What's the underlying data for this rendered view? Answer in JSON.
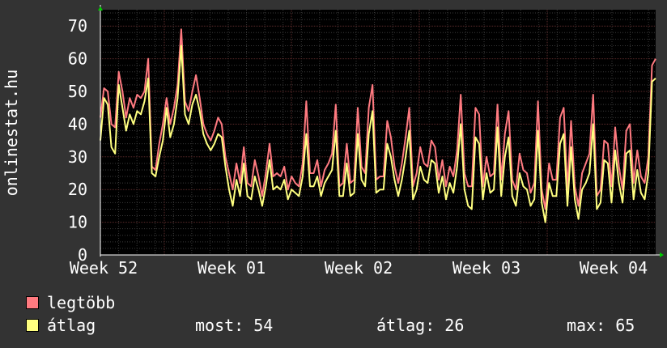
{
  "chart_data": {
    "type": "line",
    "ylabel": "onlinestat.hu",
    "ylim": [
      0,
      75
    ],
    "yticks": [
      "0",
      "10",
      "20",
      "30",
      "40",
      "50",
      "60",
      "70"
    ],
    "xticks": [
      "Week 52",
      "Week 01",
      "Week 02",
      "Week 03",
      "Week 04"
    ],
    "grid": true,
    "series": [
      {
        "name": "legtöbb",
        "color": "#ff7a80",
        "values": [
          42,
          51,
          50,
          40,
          39,
          56,
          50,
          42,
          48,
          45,
          49,
          48,
          50,
          60,
          27,
          26,
          34,
          40,
          48,
          40,
          45,
          52,
          69,
          47,
          44,
          50,
          55,
          48,
          40,
          37,
          35,
          38,
          42,
          40,
          30,
          25,
          20,
          28,
          22,
          33,
          22,
          21,
          29,
          24,
          18,
          25,
          34,
          24,
          25,
          24,
          27,
          20,
          24,
          22,
          21,
          28,
          47,
          25,
          25,
          29,
          21,
          26,
          28,
          31,
          46,
          21,
          22,
          34,
          22,
          23,
          45,
          27,
          25,
          45,
          52,
          23,
          24,
          24,
          41,
          36,
          27,
          22,
          28,
          36,
          45,
          21,
          25,
          33,
          28,
          27,
          35,
          33,
          23,
          29,
          21,
          27,
          24,
          32,
          49,
          25,
          21,
          21,
          45,
          43,
          21,
          30,
          24,
          25,
          46,
          23,
          37,
          44,
          23,
          20,
          31,
          26,
          25,
          19,
          22,
          47,
          20,
          14,
          28,
          23,
          23,
          42,
          45,
          20,
          41,
          21,
          15,
          25,
          28,
          31,
          49,
          18,
          20,
          35,
          34,
          21,
          39,
          27,
          20,
          38,
          40,
          22,
          32,
          24,
          22,
          30,
          58,
          60
        ]
      },
      {
        "name": "átlag",
        "color": "#ffff80",
        "values": [
          35,
          48,
          46,
          33,
          31,
          52,
          45,
          38,
          43,
          40,
          44,
          43,
          47,
          54,
          25,
          24,
          30,
          35,
          45,
          36,
          40,
          48,
          64,
          43,
          40,
          46,
          49,
          44,
          37,
          34,
          32,
          34,
          37,
          36,
          27,
          20,
          15,
          23,
          18,
          28,
          18,
          17,
          24,
          20,
          15,
          21,
          29,
          20,
          21,
          20,
          23,
          17,
          20,
          19,
          18,
          24,
          37,
          21,
          21,
          24,
          18,
          22,
          24,
          26,
          38,
          18,
          18,
          28,
          18,
          19,
          37,
          23,
          21,
          37,
          44,
          19,
          20,
          20,
          34,
          30,
          23,
          18,
          23,
          30,
          38,
          17,
          20,
          27,
          23,
          22,
          29,
          28,
          19,
          24,
          17,
          22,
          19,
          27,
          40,
          20,
          15,
          14,
          36,
          34,
          17,
          25,
          19,
          20,
          39,
          18,
          30,
          36,
          18,
          15,
          25,
          21,
          20,
          15,
          17,
          38,
          16,
          10,
          22,
          18,
          18,
          34,
          37,
          15,
          33,
          17,
          11,
          20,
          22,
          25,
          40,
          14,
          16,
          29,
          28,
          16,
          32,
          22,
          16,
          31,
          32,
          17,
          26,
          19,
          17,
          25,
          53,
          54
        ]
      }
    ]
  },
  "legend": [
    {
      "label": "legtöbb",
      "color": "#ff7a80"
    },
    {
      "label": "átlag",
      "color": "#ffff80"
    }
  ],
  "stats": {
    "now": "most: 54",
    "avg": "átlag: 26",
    "max": "max: 65"
  }
}
